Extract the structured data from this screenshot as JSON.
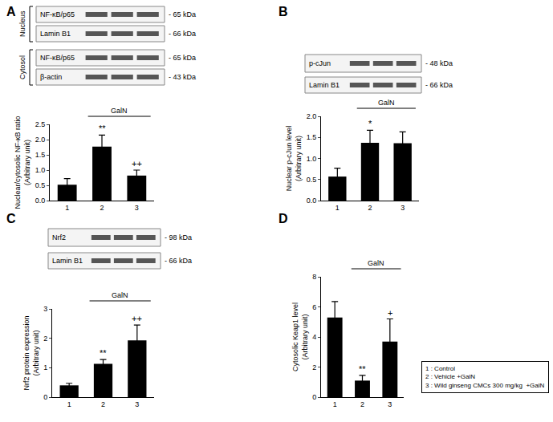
{
  "chart_data": [
    {
      "panel": "A",
      "type": "bar",
      "categories": [
        "1",
        "2",
        "3"
      ],
      "values": [
        0.52,
        1.77,
        0.82
      ],
      "errors": [
        0.2,
        0.38,
        0.18
      ],
      "color": "#000000",
      "y_label": "Nuclear/cytosolic NF-κB ratio\n(Arbitrary unit)",
      "ylim": [
        0,
        2.5
      ],
      "yticks": [
        {
          "value": 0,
          "label": "0.0"
        },
        {
          "value": 0.5,
          "label": "0.5"
        },
        {
          "value": 1,
          "label": "1.0"
        },
        {
          "value": 1.5,
          "label": "1.5"
        },
        {
          "value": 2,
          "label": "2.0"
        },
        {
          "value": 2.5,
          "label": "2.5"
        }
      ],
      "annotations": [
        {
          "x": "2",
          "text": "**"
        },
        {
          "x": "3",
          "text": "++"
        },
        {
          "span": [
            "2",
            "3"
          ],
          "text": "GalN"
        }
      ]
    },
    {
      "panel": "B",
      "type": "bar",
      "categories": [
        "1",
        "2",
        "3"
      ],
      "values": [
        0.57,
        1.37,
        1.36
      ],
      "errors": [
        0.2,
        0.3,
        0.27
      ],
      "color": "#000000",
      "y_label": "Nuclear p-cJun level\n(Arbitrary unit)",
      "ylim": [
        0,
        2
      ],
      "yticks": [
        {
          "value": 0,
          "label": "0.0"
        },
        {
          "value": 0.5,
          "label": "0.5"
        },
        {
          "value": 1,
          "label": "1.0"
        },
        {
          "value": 1.5,
          "label": "1.5"
        },
        {
          "value": 2,
          "label": "2.0"
        }
      ],
      "annotations": [
        {
          "x": "2",
          "text": "*"
        },
        {
          "span": [
            "2",
            "3"
          ],
          "text": "GalN"
        }
      ]
    },
    {
      "panel": "C",
      "type": "bar",
      "categories": [
        "1",
        "2",
        "3"
      ],
      "values": [
        0.4,
        1.13,
        1.93
      ],
      "errors": [
        0.07,
        0.15,
        0.52
      ],
      "color": "#000000",
      "y_label": "Nrf2 protein expression\n(Arbitrary unit)",
      "ylim": [
        0,
        3
      ],
      "yticks": [
        0,
        1,
        2,
        3
      ],
      "annotations": [
        {
          "x": "2",
          "text": "**"
        },
        {
          "x": "3",
          "text": "++"
        },
        {
          "span": [
            "2",
            "3"
          ],
          "text": "GalN"
        }
      ]
    },
    {
      "panel": "D",
      "type": "bar",
      "categories": [
        "1",
        "2",
        "3"
      ],
      "values": [
        5.3,
        1.1,
        3.7
      ],
      "errors": [
        1.05,
        0.35,
        1.5
      ],
      "color": "#000000",
      "y_label": "Cytosolic Keap1 level\n(Arbitrary unit)",
      "ylim": [
        0,
        8
      ],
      "yticks": [
        0,
        2,
        4,
        6,
        8
      ],
      "annotations": [
        {
          "x": "2",
          "text": "**"
        },
        {
          "x": "3",
          "text": "+"
        },
        {
          "span": [
            "2",
            "3"
          ],
          "text": "GalN"
        }
      ]
    }
  ],
  "blots": [
    {
      "panel": "A",
      "groups": [
        {
          "name": "Nucleus",
          "rows": [
            {
              "label": "NF-κB/p65",
              "size": "- 65 kDa"
            },
            {
              "label": "Lamin B1",
              "size": "- 66 kDa"
            }
          ]
        },
        {
          "name": "Cytosol",
          "rows": [
            {
              "label": "NF-κB/p65",
              "size": "- 65 kDa"
            },
            {
              "label": "β-actin",
              "size": "- 43 kDa"
            }
          ]
        }
      ]
    },
    {
      "panel": "B",
      "groups": [
        {
          "rows": [
            {
              "label": "p-cJun",
              "size": "- 48 kDa"
            },
            {
              "label": "Lamin B1",
              "size": "- 66 kDa"
            }
          ]
        }
      ]
    },
    {
      "panel": "C",
      "groups": [
        {
          "rows": [
            {
              "label": "Nrf2",
              "size": "- 98 kDa"
            },
            {
              "label": "Lamin B1",
              "size": "- 66 kDa"
            }
          ]
        }
      ]
    }
  ],
  "legend_box": [
    "1 : Control",
    "2 : Vehicle +GalN",
    "3 : Wild ginseng CMCs 300 mg/kg  +GalN"
  ]
}
